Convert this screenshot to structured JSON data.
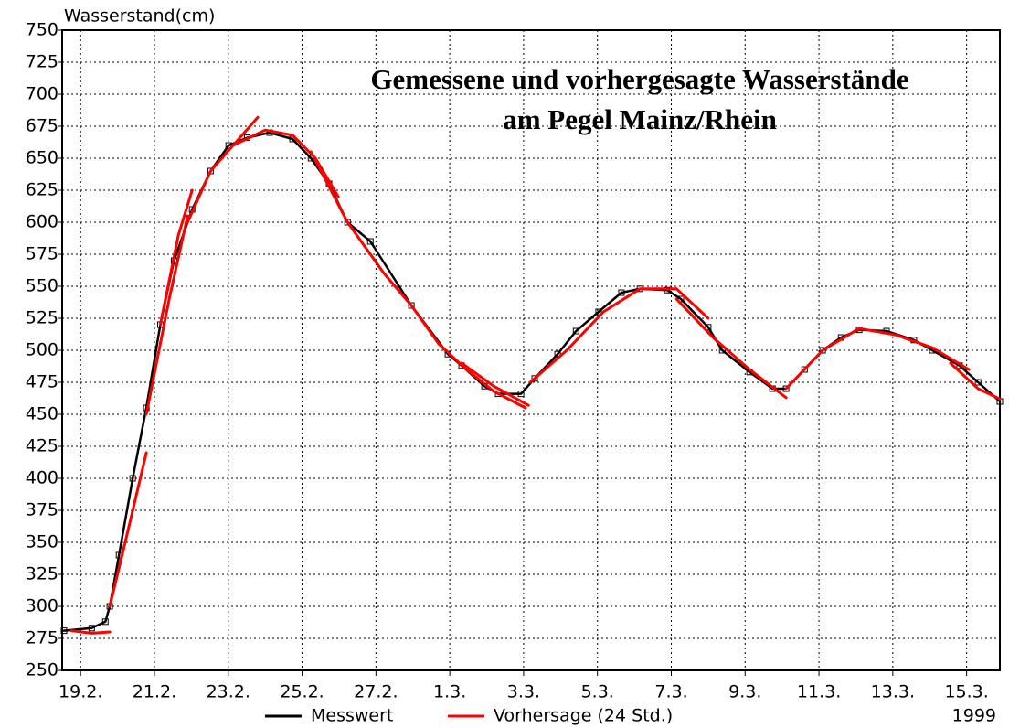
{
  "chart_data": {
    "type": "line",
    "title": "Gemessene und vorhergesagte Wasserstände",
    "subtitle": "am Pegel Mainz/Rhein",
    "ylabel": "Wasserstand(cm)",
    "xlabel": "1999",
    "xlim": [
      18.5,
      43.9
    ],
    "ylim": [
      250,
      750
    ],
    "xticks": [
      {
        "value": 19,
        "label": "19.2."
      },
      {
        "value": 21,
        "label": "21.2."
      },
      {
        "value": 23,
        "label": "23.2."
      },
      {
        "value": 25,
        "label": "25.2."
      },
      {
        "value": 27,
        "label": "27.2."
      },
      {
        "value": 29,
        "label": "1.3."
      },
      {
        "value": 31,
        "label": "3.3."
      },
      {
        "value": 33,
        "label": "5.3."
      },
      {
        "value": 35,
        "label": "7.3."
      },
      {
        "value": 37,
        "label": "9.3."
      },
      {
        "value": 39,
        "label": "11.3."
      },
      {
        "value": 41,
        "label": "13.3."
      },
      {
        "value": 43,
        "label": "15.3."
      }
    ],
    "yticks": [
      250,
      275,
      300,
      325,
      350,
      375,
      400,
      425,
      450,
      475,
      500,
      525,
      550,
      575,
      600,
      625,
      650,
      675,
      700,
      725,
      750
    ],
    "grid": true,
    "series": [
      {
        "name": "Messwert",
        "color": "#000000",
        "x": [
          18.55,
          19.3,
          19.67,
          19.79,
          20.04,
          20.41,
          20.78,
          21.16,
          21.53,
          22.02,
          22.52,
          23.01,
          23.51,
          24.12,
          24.74,
          25.24,
          25.73,
          26.23,
          26.85,
          27.96,
          28.95,
          29.32,
          29.94,
          30.31,
          30.93,
          31.3,
          31.92,
          32.42,
          33.03,
          33.65,
          34.15,
          34.89,
          35.26,
          36.0,
          36.38,
          37.12,
          37.74,
          38.11,
          38.61,
          39.1,
          39.6,
          40.09,
          40.83,
          41.57,
          42.07,
          42.81,
          43.31,
          43.9
        ],
        "values": [
          281,
          283,
          288,
          300,
          340,
          400,
          455,
          520,
          570,
          610,
          640,
          660,
          666,
          670,
          665,
          650,
          630,
          600,
          585,
          535,
          497,
          488,
          472,
          466,
          466,
          478,
          497,
          515,
          530,
          545,
          548,
          547,
          540,
          518,
          500,
          483,
          470,
          470,
          485,
          500,
          510,
          516,
          515,
          508,
          500,
          488,
          475,
          460
        ]
      },
      {
        "name": "Vorhersage (24 Std.)",
        "color": "#ff0000",
        "x": [
          18.75,
          19.3,
          19.79,
          null,
          19.79,
          20.29,
          20.78,
          null,
          20.78,
          21.4,
          21.9,
          null,
          21.16,
          21.65,
          22.02,
          null,
          21.9,
          22.52,
          23.13,
          23.8,
          null,
          23.13,
          24.0,
          24.74,
          25.36,
          25.98,
          null,
          25.24,
          26.23,
          27.22,
          27.96,
          28.7,
          29.45,
          30.19,
          31.05,
          null,
          29.32,
          30.19,
          31.13,
          null,
          31.18,
          32.17,
          33.16,
          34.15,
          35.14,
          36.0,
          null,
          35.14,
          36.13,
          37.12,
          38.11,
          null,
          38.11,
          39.1,
          40.09,
          41.08,
          42.07,
          43.06,
          null,
          42.56,
          43.31,
          43.9
        ],
        "values": [
          281,
          279,
          280,
          null,
          300,
          360,
          420,
          null,
          450,
          540,
          605,
          null,
          520,
          590,
          625,
          null,
          600,
          640,
          660,
          682,
          null,
          660,
          672,
          668,
          650,
          620,
          null,
          655,
          600,
          560,
          535,
          505,
          485,
          468,
          455,
          null,
          490,
          472,
          457,
          null,
          475,
          500,
          530,
          548,
          548,
          525,
          null,
          540,
          510,
          485,
          463,
          null,
          470,
          500,
          517,
          512,
          502,
          485,
          null,
          490,
          470,
          462
        ]
      }
    ]
  }
}
